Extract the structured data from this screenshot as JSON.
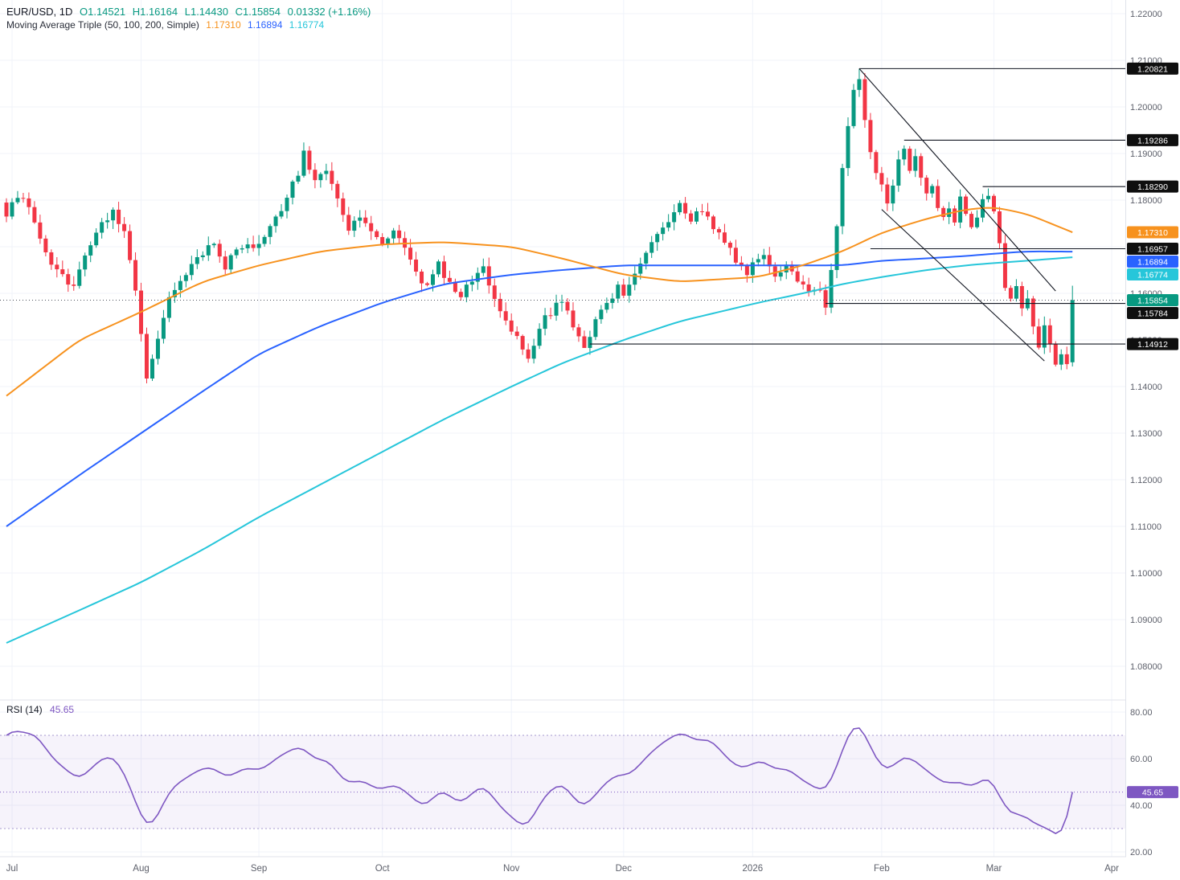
{
  "header": {
    "symbol": "EUR/USD, 1D",
    "o": "O1.14521",
    "h": "H1.16164",
    "l": "L1.14430",
    "c": "C1.15854",
    "change": "0.01332 (+1.16%)",
    "ma_label": "Moving Average Triple (50, 100, 200, Simple)",
    "ma50": "1.17310",
    "ma100": "1.16894",
    "ma200": "1.16774"
  },
  "rsi_legend": {
    "label": "RSI (14)",
    "value": "45.65"
  },
  "chart_data": {
    "type": "candlestick",
    "symbol": "EUR/USD",
    "timeframe": "1D",
    "last_ohlc": {
      "open": 1.14521,
      "high": 1.16164,
      "low": 1.1443,
      "close": 1.15854,
      "change_abs": 0.01332,
      "change_pct": "+1.16%"
    },
    "colors": {
      "up": "#089981",
      "down": "#f23645",
      "ma50": "#f7921e",
      "ma100": "#2962ff",
      "ma200": "#26c6da",
      "rsi": "#7e57c2",
      "axis_text": "#5d606b",
      "grid": "#f0f3fa",
      "level": "#131722",
      "separator": "#e0e3eb"
    },
    "y_axis": {
      "ticks": [
        "1.22000",
        "1.21000",
        "1.20000",
        "1.19000",
        "1.18000",
        "1.17000",
        "1.16000",
        "1.15000",
        "1.14000",
        "1.13000",
        "1.12000",
        "1.11000",
        "1.10000",
        "1.09000",
        "1.08000"
      ]
    },
    "x_axis": [
      {
        "label": "Jul",
        "i": 1
      },
      {
        "label": "Aug",
        "i": 24
      },
      {
        "label": "Sep",
        "i": 45
      },
      {
        "label": "Oct",
        "i": 67
      },
      {
        "label": "Nov",
        "i": 90
      },
      {
        "label": "Dec",
        "i": 110
      },
      {
        "label": "2026",
        "i": 133
      },
      {
        "label": "Feb",
        "i": 156
      },
      {
        "label": "Mar",
        "i": 176
      },
      {
        "label": "Apr",
        "i": 197
      }
    ],
    "close_anchors": [
      [
        0,
        1.177
      ],
      [
        2,
        1.181
      ],
      [
        4,
        1.179
      ],
      [
        6,
        1.171
      ],
      [
        9,
        1.165
      ],
      [
        12,
        1.161
      ],
      [
        14,
        1.168
      ],
      [
        16,
        1.173
      ],
      [
        19,
        1.178
      ],
      [
        21,
        1.173
      ],
      [
        23,
        1.16
      ],
      [
        24,
        1.152
      ],
      [
        25,
        1.1425
      ],
      [
        27,
        1.15
      ],
      [
        29,
        1.16
      ],
      [
        31,
        1.163
      ],
      [
        34,
        1.168
      ],
      [
        37,
        1.171
      ],
      [
        39,
        1.166
      ],
      [
        41,
        1.169
      ],
      [
        43,
        1.171
      ],
      [
        45,
        1.17
      ],
      [
        48,
        1.176
      ],
      [
        50,
        1.181
      ],
      [
        52,
        1.186
      ],
      [
        53,
        1.19
      ],
      [
        55,
        1.184
      ],
      [
        57,
        1.186
      ],
      [
        59,
        1.18
      ],
      [
        61,
        1.174
      ],
      [
        63,
        1.177
      ],
      [
        65,
        1.173
      ],
      [
        67,
        1.171
      ],
      [
        69,
        1.174
      ],
      [
        71,
        1.169
      ],
      [
        73,
        1.165
      ],
      [
        75,
        1.161
      ],
      [
        77,
        1.166
      ],
      [
        79,
        1.162
      ],
      [
        81,
        1.159
      ],
      [
        83,
        1.163
      ],
      [
        85,
        1.166
      ],
      [
        87,
        1.159
      ],
      [
        89,
        1.154
      ],
      [
        90,
        1.152
      ],
      [
        92,
        1.148
      ],
      [
        93,
        1.1455
      ],
      [
        95,
        1.153
      ],
      [
        97,
        1.156
      ],
      [
        99,
        1.159
      ],
      [
        101,
        1.153
      ],
      [
        103,
        1.149
      ],
      [
        105,
        1.154
      ],
      [
        107,
        1.158
      ],
      [
        109,
        1.161
      ],
      [
        110,
        1.16
      ],
      [
        112,
        1.164
      ],
      [
        114,
        1.169
      ],
      [
        116,
        1.173
      ],
      [
        118,
        1.176
      ],
      [
        120,
        1.179
      ],
      [
        122,
        1.176
      ],
      [
        124,
        1.178
      ],
      [
        126,
        1.174
      ],
      [
        128,
        1.171
      ],
      [
        130,
        1.167
      ],
      [
        132,
        1.164
      ],
      [
        133,
        1.166
      ],
      [
        135,
        1.168
      ],
      [
        137,
        1.164
      ],
      [
        139,
        1.166
      ],
      [
        141,
        1.163
      ],
      [
        143,
        1.161
      ],
      [
        145,
        1.16
      ],
      [
        146,
        1.1578
      ],
      [
        147,
        1.165
      ],
      [
        148,
        1.175
      ],
      [
        149,
        1.186
      ],
      [
        150,
        1.196
      ],
      [
        151,
        1.203
      ],
      [
        152,
        1.2065
      ],
      [
        153,
        1.198
      ],
      [
        154,
        1.191
      ],
      [
        155,
        1.186
      ],
      [
        156,
        1.183
      ],
      [
        157,
        1.18
      ],
      [
        158,
        1.184
      ],
      [
        159,
        1.188
      ],
      [
        160,
        1.191
      ],
      [
        161,
        1.187
      ],
      [
        162,
        1.19
      ],
      [
        163,
        1.185
      ],
      [
        164,
        1.181
      ],
      [
        165,
        1.183
      ],
      [
        166,
        1.179
      ],
      [
        167,
        1.176
      ],
      [
        168,
        1.179
      ],
      [
        169,
        1.176
      ],
      [
        170,
        1.18
      ],
      [
        171,
        1.177
      ],
      [
        172,
        1.174
      ],
      [
        173,
        1.177
      ],
      [
        174,
        1.18
      ],
      [
        175,
        1.181
      ],
      [
        176,
        1.178
      ],
      [
        177,
        1.17
      ],
      [
        178,
        1.162
      ],
      [
        179,
        1.158
      ],
      [
        180,
        1.161
      ],
      [
        181,
        1.156
      ],
      [
        182,
        1.159
      ],
      [
        183,
        1.153
      ],
      [
        184,
        1.149
      ],
      [
        185,
        1.154
      ],
      [
        186,
        1.15
      ],
      [
        187,
        1.1445
      ],
      [
        188,
        1.147
      ],
      [
        189,
        1.1455
      ],
      [
        190,
        1.15854
      ]
    ],
    "key_candles": {
      "103": {
        "low": 1.14912
      },
      "152": {
        "high": 1.20821
      },
      "187": {
        "low": 1.1443
      },
      "190": {
        "open": 1.14521,
        "high": 1.16164,
        "low": 1.1443,
        "close": 1.15854
      }
    },
    "ma50_anchors": [
      [
        0,
        1.138
      ],
      [
        13,
        1.15
      ],
      [
        24,
        1.156
      ],
      [
        35,
        1.1625
      ],
      [
        45,
        1.166
      ],
      [
        56,
        1.169
      ],
      [
        67,
        1.1705
      ],
      [
        78,
        1.171
      ],
      [
        90,
        1.17
      ],
      [
        99,
        1.1675
      ],
      [
        110,
        1.164
      ],
      [
        120,
        1.1625
      ],
      [
        134,
        1.1635
      ],
      [
        142,
        1.166
      ],
      [
        149,
        1.169
      ],
      [
        156,
        1.173
      ],
      [
        164,
        1.176
      ],
      [
        171,
        1.178
      ],
      [
        176,
        1.1785
      ],
      [
        182,
        1.177
      ],
      [
        190,
        1.1731
      ]
    ],
    "ma100_anchors": [
      [
        0,
        1.11
      ],
      [
        13,
        1.121
      ],
      [
        24,
        1.13
      ],
      [
        35,
        1.139
      ],
      [
        45,
        1.147
      ],
      [
        56,
        1.153
      ],
      [
        67,
        1.158
      ],
      [
        78,
        1.162
      ],
      [
        90,
        1.164
      ],
      [
        99,
        1.165
      ],
      [
        110,
        1.166
      ],
      [
        120,
        1.166
      ],
      [
        134,
        1.166
      ],
      [
        142,
        1.166
      ],
      [
        149,
        1.166
      ],
      [
        156,
        1.167
      ],
      [
        164,
        1.1675
      ],
      [
        171,
        1.168
      ],
      [
        176,
        1.1685
      ],
      [
        182,
        1.169
      ],
      [
        190,
        1.16894
      ]
    ],
    "ma200_anchors": [
      [
        0,
        1.085
      ],
      [
        13,
        1.092
      ],
      [
        24,
        1.098
      ],
      [
        35,
        1.105
      ],
      [
        45,
        1.112
      ],
      [
        56,
        1.119
      ],
      [
        67,
        1.126
      ],
      [
        78,
        1.133
      ],
      [
        90,
        1.14
      ],
      [
        99,
        1.145
      ],
      [
        110,
        1.15
      ],
      [
        120,
        1.154
      ],
      [
        134,
        1.158
      ],
      [
        142,
        1.16
      ],
      [
        149,
        1.162
      ],
      [
        156,
        1.1635
      ],
      [
        164,
        1.165
      ],
      [
        171,
        1.166
      ],
      [
        176,
        1.1665
      ],
      [
        182,
        1.167
      ],
      [
        190,
        1.16774
      ]
    ],
    "levels": {
      "hlines": [
        {
          "price": 1.20821,
          "from": 152
        },
        {
          "price": 1.19286,
          "from": 160
        },
        {
          "price": 1.1829,
          "from": 174
        },
        {
          "price": 1.16957,
          "from": 154
        },
        {
          "price": 1.15784,
          "from": 146
        },
        {
          "price": 1.14912,
          "from": 104
        }
      ],
      "trendlines": [
        {
          "i1": 152,
          "p1": 1.20821,
          "i2": 187,
          "p2": 1.1605
        },
        {
          "i1": 156,
          "p1": 1.178,
          "i2": 185,
          "p2": 1.1455
        }
      ],
      "close_line": 1.15854
    },
    "price_badges": [
      {
        "text": "1.20821",
        "bg": "#0f0f0f",
        "price": 1.20821
      },
      {
        "text": "1.19286",
        "bg": "#0f0f0f",
        "price": 1.19286
      },
      {
        "text": "1.18290",
        "bg": "#0f0f0f",
        "price": 1.1829
      },
      {
        "text": "1.17310",
        "bg": "#f7921e",
        "price": 1.1731
      },
      {
        "text": "1.16957",
        "bg": "#0f0f0f",
        "price": 1.16957
      },
      {
        "text": "1.16894",
        "bg": "#2962ff",
        "price": 1.16894
      },
      {
        "text": "1.16774",
        "bg": "#26c6da",
        "price": 1.16774
      },
      {
        "text": "1.15854",
        "bg": "#089981",
        "price": 1.15854
      },
      {
        "text": "1.15784",
        "bg": "#0f0f0f",
        "price": 1.15784
      },
      {
        "text": "1.14912",
        "bg": "#0f0f0f",
        "price": 1.14912
      }
    ],
    "rsi": {
      "period_label": "RSI (14)",
      "value": 45.65,
      "ticks": [
        "80.00",
        "60.00",
        "40.00",
        "20.00"
      ],
      "band": [
        30,
        70
      ],
      "anchors": [
        [
          0,
          70
        ],
        [
          1,
          74
        ],
        [
          3,
          70
        ],
        [
          5,
          72
        ],
        [
          7,
          64
        ],
        [
          9,
          58
        ],
        [
          11,
          55
        ],
        [
          13,
          50
        ],
        [
          15,
          56
        ],
        [
          17,
          60
        ],
        [
          19,
          62
        ],
        [
          21,
          54
        ],
        [
          23,
          42
        ],
        [
          25,
          28
        ],
        [
          27,
          35
        ],
        [
          29,
          47
        ],
        [
          31,
          50
        ],
        [
          34,
          55
        ],
        [
          37,
          57
        ],
        [
          39,
          51
        ],
        [
          41,
          54
        ],
        [
          43,
          57
        ],
        [
          45,
          54
        ],
        [
          48,
          60
        ],
        [
          50,
          63
        ],
        [
          53,
          66
        ],
        [
          55,
          58
        ],
        [
          57,
          61
        ],
        [
          59,
          54
        ],
        [
          61,
          48
        ],
        [
          63,
          52
        ],
        [
          65,
          48
        ],
        [
          67,
          46
        ],
        [
          69,
          50
        ],
        [
          71,
          46
        ],
        [
          73,
          42
        ],
        [
          75,
          38
        ],
        [
          77,
          48
        ],
        [
          79,
          44
        ],
        [
          81,
          40
        ],
        [
          83,
          45
        ],
        [
          85,
          50
        ],
        [
          87,
          42
        ],
        [
          89,
          37
        ],
        [
          91,
          33
        ],
        [
          93,
          29
        ],
        [
          95,
          42
        ],
        [
          97,
          46
        ],
        [
          99,
          51
        ],
        [
          101,
          43
        ],
        [
          103,
          38
        ],
        [
          105,
          45
        ],
        [
          107,
          50
        ],
        [
          109,
          54
        ],
        [
          111,
          52
        ],
        [
          113,
          58
        ],
        [
          115,
          63
        ],
        [
          117,
          67
        ],
        [
          119,
          70
        ],
        [
          121,
          72
        ],
        [
          123,
          66
        ],
        [
          125,
          70
        ],
        [
          127,
          64
        ],
        [
          129,
          59
        ],
        [
          131,
          55
        ],
        [
          133,
          58
        ],
        [
          135,
          60
        ],
        [
          137,
          54
        ],
        [
          139,
          57
        ],
        [
          141,
          52
        ],
        [
          143,
          49
        ],
        [
          145,
          47
        ],
        [
          146,
          44
        ],
        [
          147,
          50
        ],
        [
          148,
          57
        ],
        [
          149,
          64
        ],
        [
          150,
          70
        ],
        [
          151,
          75
        ],
        [
          152,
          78
        ],
        [
          153,
          70
        ],
        [
          154,
          64
        ],
        [
          155,
          60
        ],
        [
          156,
          57
        ],
        [
          157,
          53
        ],
        [
          158,
          56
        ],
        [
          159,
          60
        ],
        [
          160,
          63
        ],
        [
          161,
          58
        ],
        [
          162,
          61
        ],
        [
          163,
          57
        ],
        [
          164,
          53
        ],
        [
          165,
          55
        ],
        [
          166,
          51
        ],
        [
          167,
          48
        ],
        [
          168,
          51
        ],
        [
          169,
          48
        ],
        [
          170,
          52
        ],
        [
          171,
          49
        ],
        [
          172,
          46
        ],
        [
          173,
          49
        ],
        [
          174,
          52
        ],
        [
          175,
          53
        ],
        [
          176,
          50
        ],
        [
          177,
          44
        ],
        [
          178,
          38
        ],
        [
          179,
          35
        ],
        [
          180,
          38
        ],
        [
          181,
          34
        ],
        [
          182,
          37
        ],
        [
          183,
          32
        ],
        [
          184,
          29
        ],
        [
          185,
          33
        ],
        [
          186,
          30
        ],
        [
          187,
          25
        ],
        [
          188,
          28
        ],
        [
          189,
          27
        ],
        [
          190,
          45.65
        ]
      ]
    }
  }
}
